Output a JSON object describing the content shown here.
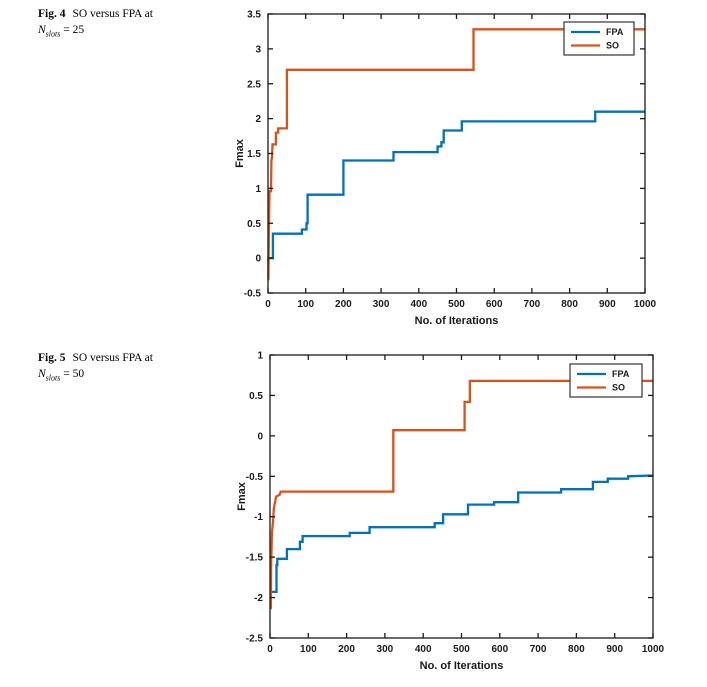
{
  "page": {
    "background": "#ffffff"
  },
  "captions": {
    "fig4": {
      "label": "Fig. 4",
      "title": "SO versus FPA at",
      "var": "N",
      "var_sub": "slots",
      "var_eq": " = 25"
    },
    "fig5": {
      "label": "Fig. 5",
      "title": "SO versus FPA at",
      "var": "N",
      "var_sub": "slots",
      "var_eq": " = 50"
    }
  },
  "colors": {
    "fpa_line": "#0072BD",
    "so_line": "#D95319",
    "axis": "#1a1a1a",
    "legend_border": "#333333",
    "legend_background": "#ffffff"
  },
  "chart_data": [
    {
      "type": "line",
      "figure": "Fig. 4",
      "title": "",
      "xlabel": "No. of Iterations",
      "ylabel": "Fmax",
      "xlim": [
        0,
        1000
      ],
      "ylim": [
        -0.5,
        3.5
      ],
      "xticks": [
        0,
        100,
        200,
        300,
        400,
        500,
        600,
        700,
        800,
        900,
        1000
      ],
      "yticks": [
        -0.5,
        0,
        0.5,
        1,
        1.5,
        2,
        2.5,
        3,
        3.5
      ],
      "grid": false,
      "legend_position": "top-right",
      "series": [
        {
          "name": "FPA",
          "color": "#0072BD",
          "points": [
            [
              0,
              -0.05
            ],
            [
              1,
              -0.05
            ],
            [
              1,
              0.0
            ],
            [
              13,
              0.0
            ],
            [
              13,
              0.35
            ],
            [
              90,
              0.35
            ],
            [
              90,
              0.41
            ],
            [
              102,
              0.41
            ],
            [
              102,
              0.5
            ],
            [
              105,
              0.5
            ],
            [
              105,
              0.91
            ],
            [
              200,
              0.91
            ],
            [
              200,
              1.4
            ],
            [
              333,
              1.4
            ],
            [
              333,
              1.52
            ],
            [
              450,
              1.52
            ],
            [
              450,
              1.6
            ],
            [
              460,
              1.6
            ],
            [
              460,
              1.66
            ],
            [
              466,
              1.66
            ],
            [
              466,
              1.83
            ],
            [
              514,
              1.83
            ],
            [
              514,
              1.96
            ],
            [
              868,
              1.96
            ],
            [
              868,
              2.1
            ],
            [
              1000,
              2.1
            ]
          ]
        },
        {
          "name": "SO",
          "color": "#D95319",
          "points": [
            [
              0,
              -0.3
            ],
            [
              1,
              -0.3
            ],
            [
              2,
              0.3
            ],
            [
              3,
              0.6
            ],
            [
              4,
              0.96
            ],
            [
              8,
              0.96
            ],
            [
              9,
              1.4
            ],
            [
              11,
              1.45
            ],
            [
              12,
              1.63
            ],
            [
              21,
              1.63
            ],
            [
              21,
              1.8
            ],
            [
              27,
              1.8
            ],
            [
              27,
              1.86
            ],
            [
              50,
              1.86
            ],
            [
              50,
              2.7
            ],
            [
              545,
              2.7
            ],
            [
              545,
              3.28
            ],
            [
              1000,
              3.28
            ]
          ]
        }
      ]
    },
    {
      "type": "line",
      "figure": "Fig. 5",
      "title": "",
      "xlabel": "No. of Iterations",
      "ylabel": "Fmax",
      "xlim": [
        0,
        1000
      ],
      "ylim": [
        -2.5,
        1
      ],
      "xticks": [
        0,
        100,
        200,
        300,
        400,
        500,
        600,
        700,
        800,
        900,
        1000
      ],
      "yticks": [
        -2.5,
        -2,
        -1.5,
        -1,
        -0.5,
        0,
        0.5,
        1
      ],
      "grid": false,
      "legend_position": "top-right",
      "series": [
        {
          "name": "FPA",
          "color": "#0072BD",
          "points": [
            [
              0,
              -1.93
            ],
            [
              17,
              -1.93
            ],
            [
              17,
              -1.6
            ],
            [
              19,
              -1.6
            ],
            [
              19,
              -1.52
            ],
            [
              44,
              -1.52
            ],
            [
              44,
              -1.4
            ],
            [
              78,
              -1.4
            ],
            [
              78,
              -1.31
            ],
            [
              85,
              -1.31
            ],
            [
              85,
              -1.24
            ],
            [
              208,
              -1.24
            ],
            [
              208,
              -1.2
            ],
            [
              260,
              -1.2
            ],
            [
              260,
              -1.13
            ],
            [
              430,
              -1.13
            ],
            [
              430,
              -1.08
            ],
            [
              452,
              -1.08
            ],
            [
              452,
              -0.97
            ],
            [
              517,
              -0.97
            ],
            [
              517,
              -0.85
            ],
            [
              585,
              -0.85
            ],
            [
              585,
              -0.82
            ],
            [
              648,
              -0.82
            ],
            [
              648,
              -0.7
            ],
            [
              760,
              -0.7
            ],
            [
              760,
              -0.66
            ],
            [
              843,
              -0.66
            ],
            [
              843,
              -0.57
            ],
            [
              882,
              -0.57
            ],
            [
              882,
              -0.53
            ],
            [
              935,
              -0.53
            ],
            [
              935,
              -0.5
            ],
            [
              1000,
              -0.49
            ]
          ]
        },
        {
          "name": "SO",
          "color": "#D95319",
          "points": [
            [
              0,
              -2.13
            ],
            [
              2,
              -2.13
            ],
            [
              3,
              -1.6
            ],
            [
              5,
              -1.2
            ],
            [
              8,
              -1.05
            ],
            [
              10,
              -0.9
            ],
            [
              13,
              -0.82
            ],
            [
              16,
              -0.75
            ],
            [
              25,
              -0.73
            ],
            [
              28,
              -0.69
            ],
            [
              322,
              -0.69
            ],
            [
              322,
              0.07
            ],
            [
              508,
              0.07
            ],
            [
              508,
              0.42
            ],
            [
              522,
              0.42
            ],
            [
              522,
              0.68
            ],
            [
              1000,
              0.68
            ]
          ]
        }
      ]
    }
  ]
}
